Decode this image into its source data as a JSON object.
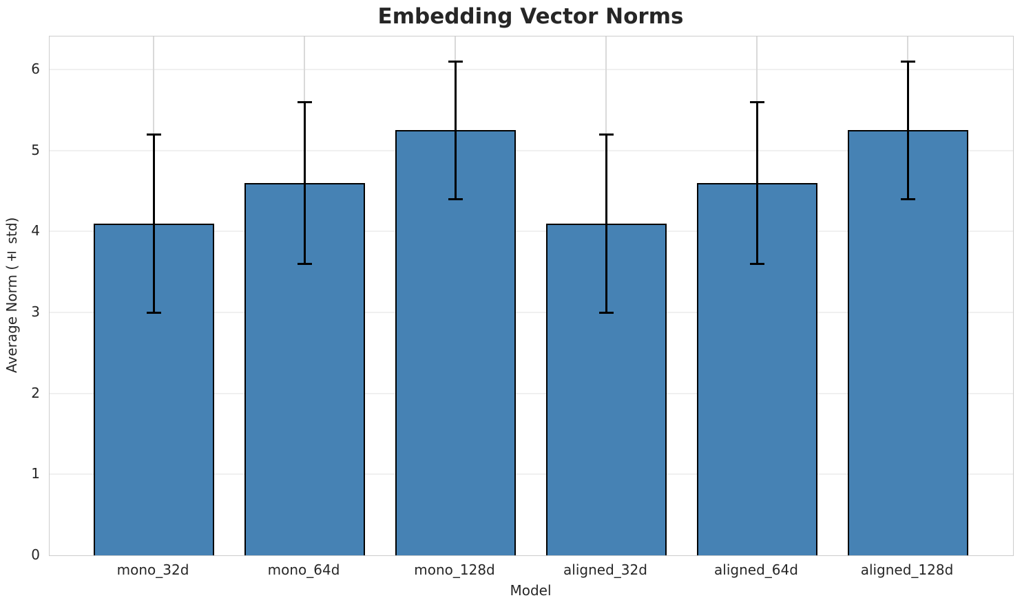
{
  "chart_data": {
    "type": "bar",
    "title": "Embedding Vector Norms",
    "xlabel": "Model",
    "ylabel": "Average Norm (± std)",
    "categories": [
      "mono_32d",
      "mono_64d",
      "mono_128d",
      "aligned_32d",
      "aligned_64d",
      "aligned_128d"
    ],
    "values": [
      4.1,
      4.6,
      5.25,
      4.1,
      4.6,
      5.25
    ],
    "error_std": [
      1.1,
      1.0,
      0.85,
      1.1,
      1.0,
      0.85
    ],
    "yticks": [
      0,
      1,
      2,
      3,
      4,
      5,
      6
    ],
    "ylim": [
      0,
      6.41
    ],
    "grid": true,
    "legend": "none",
    "colors": {
      "bar_fill": "#4682B4",
      "bar_edge": "#000000",
      "error_bar": "#000000",
      "grid_horizontal": "#f0f0f0",
      "grid_vertical": "#d9d9d9",
      "spine": "#cccccc",
      "text": "#262626"
    }
  }
}
